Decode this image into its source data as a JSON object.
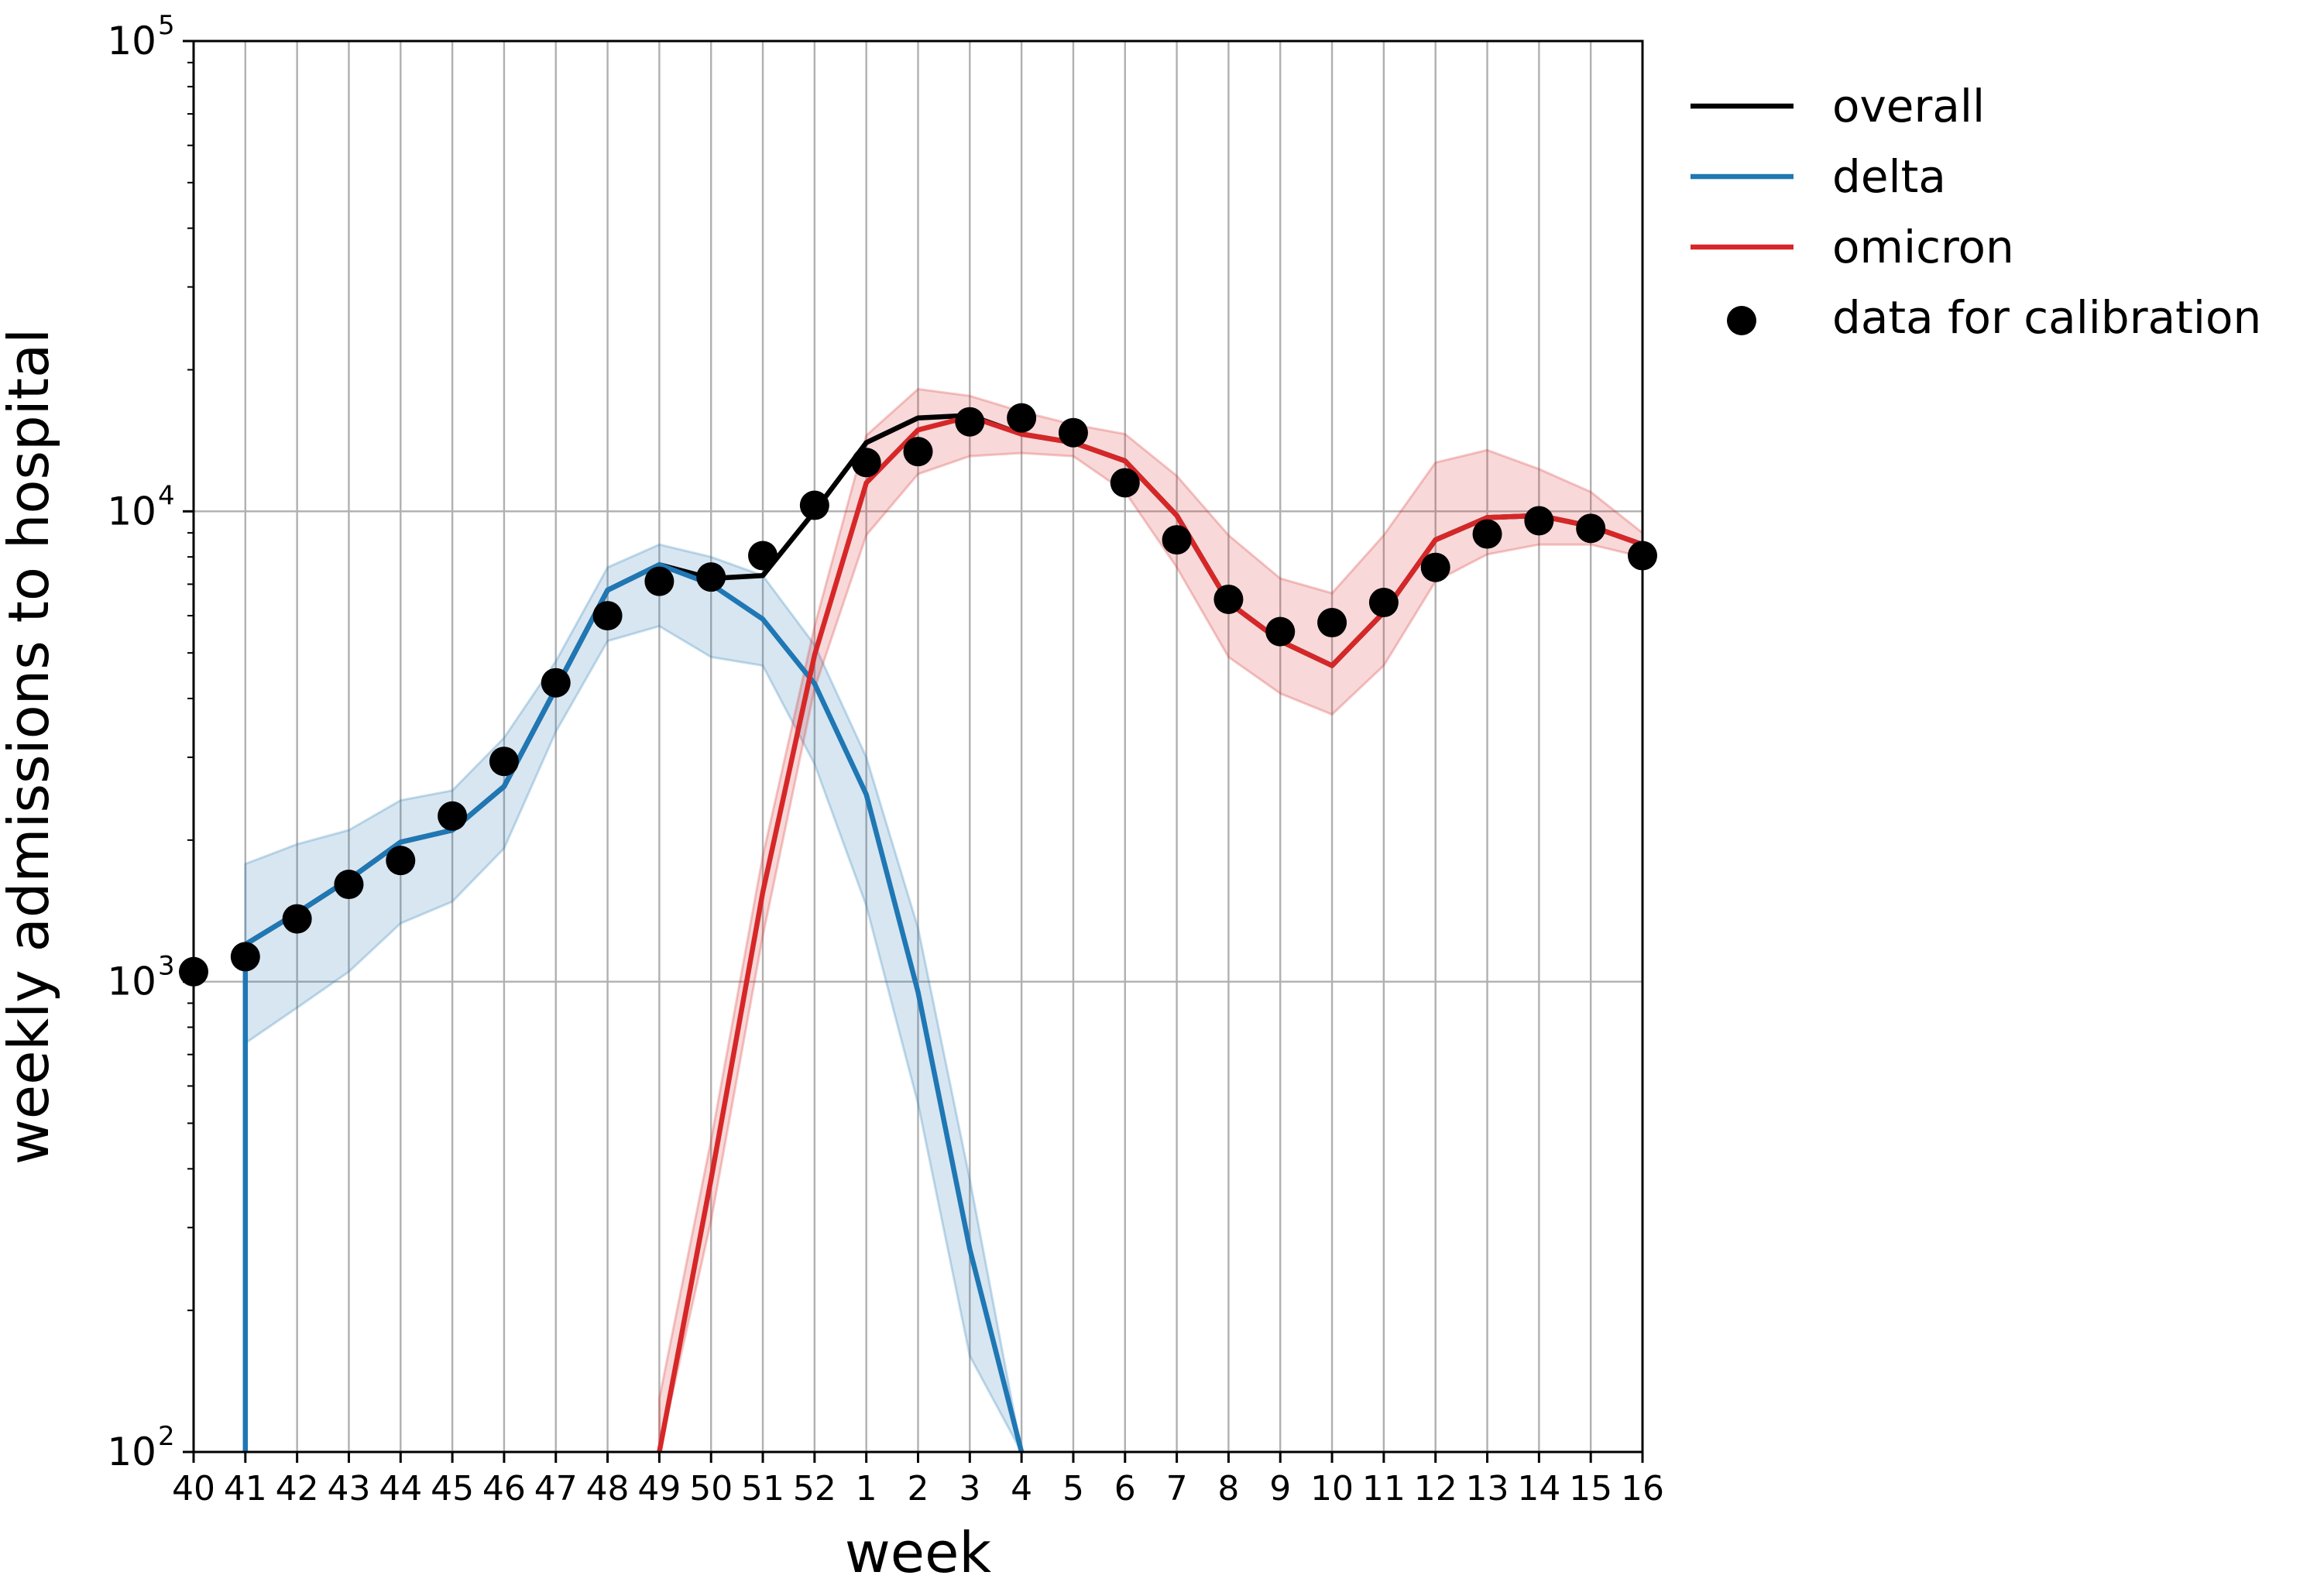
{
  "chart_data": {
    "type": "line",
    "y_scale": "log",
    "xlabel": "week",
    "ylabel": "weekly admissions to hospital",
    "ylim": [
      100,
      100000
    ],
    "grid": true,
    "legend_position": "outside-right-top",
    "categories": [
      "40",
      "41",
      "42",
      "43",
      "44",
      "45",
      "46",
      "47",
      "48",
      "49",
      "50",
      "51",
      "52",
      "1",
      "2",
      "3",
      "4",
      "5",
      "6",
      "7",
      "8",
      "9",
      "10",
      "11",
      "12",
      "13",
      "14",
      "15",
      "16"
    ],
    "y_ticks": [
      {
        "value": 100,
        "base": "10",
        "exp": "2"
      },
      {
        "value": 1000,
        "base": "10",
        "exp": "3"
      },
      {
        "value": 10000,
        "base": "10",
        "exp": "4"
      },
      {
        "value": 100000,
        "base": "10",
        "exp": "5"
      }
    ],
    "series": [
      {
        "name": "overall",
        "kind": "line",
        "color": "#000000",
        "values": [
          null,
          1200,
          1400,
          1650,
          1980,
          2100,
          2600,
          4200,
          6800,
          7700,
          7200,
          7300,
          10000,
          14000,
          15800,
          16000,
          14600,
          14000,
          12800,
          9800,
          6400,
          5300,
          4700,
          6100,
          8700,
          9700,
          9800,
          9300,
          8500
        ]
      },
      {
        "name": "delta",
        "kind": "line",
        "color": "#1f77b4",
        "values": [
          null,
          1200,
          1400,
          1650,
          1980,
          2100,
          2600,
          4200,
          6800,
          7700,
          7000,
          5900,
          4300,
          2500,
          950,
          270,
          100,
          null,
          null,
          null,
          null,
          null,
          null,
          null,
          null,
          null,
          null,
          null,
          null
        ],
        "drop_to_axis_at": "41",
        "band_lower": [
          null,
          740,
          880,
          1050,
          1330,
          1480,
          1920,
          3400,
          5300,
          5700,
          4900,
          4700,
          2900,
          1450,
          550,
          160,
          100,
          null,
          null,
          null,
          null,
          null,
          null,
          null,
          null,
          null,
          null,
          null,
          null
        ],
        "band_upper": [
          null,
          1780,
          1960,
          2100,
          2430,
          2550,
          3300,
          4800,
          7600,
          8500,
          8000,
          7300,
          5200,
          3000,
          1300,
          380,
          100,
          null,
          null,
          null,
          null,
          null,
          null,
          null,
          null,
          null,
          null,
          null,
          null
        ],
        "band_color": "#1f77b4"
      },
      {
        "name": "omicron",
        "kind": "line",
        "color": "#d62728",
        "values": [
          null,
          null,
          null,
          null,
          null,
          null,
          null,
          null,
          null,
          100,
          380,
          1550,
          4950,
          11500,
          14900,
          15900,
          14600,
          14000,
          12800,
          9800,
          6400,
          5300,
          4700,
          6100,
          8700,
          9700,
          9800,
          9300,
          8500
        ],
        "band_lower": [
          null,
          null,
          null,
          null,
          null,
          null,
          null,
          null,
          null,
          100,
          310,
          1250,
          4200,
          8900,
          12000,
          13100,
          13300,
          13100,
          11000,
          7600,
          4900,
          4100,
          3700,
          4700,
          7100,
          8100,
          8500,
          8500,
          8000
        ],
        "band_upper": [
          null,
          null,
          null,
          null,
          null,
          null,
          null,
          null,
          null,
          130,
          460,
          1850,
          5700,
          14500,
          18200,
          17600,
          16300,
          15300,
          14600,
          11900,
          8900,
          7200,
          6700,
          8900,
          12700,
          13500,
          12300,
          11000,
          9000
        ],
        "band_color": "#d62728"
      },
      {
        "name": "data for calibration",
        "kind": "scatter",
        "color": "#000000",
        "values": [
          1050,
          1130,
          1360,
          1610,
          1810,
          2250,
          2940,
          4320,
          6000,
          7100,
          7250,
          8050,
          10300,
          12700,
          13400,
          15500,
          15800,
          14700,
          11500,
          8700,
          6500,
          5550,
          5800,
          6400,
          7600,
          8950,
          9550,
          9200,
          8050
        ]
      }
    ]
  }
}
